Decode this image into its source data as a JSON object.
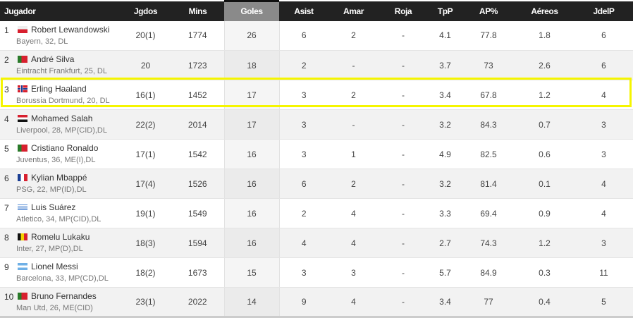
{
  "columns": [
    "Jugador",
    "Jgdos",
    "Mins",
    "Goles",
    "Asist",
    "Amar",
    "Roja",
    "TpP",
    "AP%",
    "Aéreos",
    "JdelP"
  ],
  "highlight_color": "#f5f500",
  "players": [
    {
      "rank": "1",
      "name": "Robert Lewandowski",
      "flag": "poland-flag",
      "club": "Bayern,  32, DL",
      "stats": [
        "20(1)",
        "1774",
        "26",
        "6",
        "2",
        "-",
        "4.1",
        "77.8",
        "1.8",
        "6"
      ]
    },
    {
      "rank": "2",
      "name": "André Silva",
      "flag": "portugal-flag",
      "club": "Eintracht Frankfurt,  25, DL",
      "stats": [
        "20",
        "1723",
        "18",
        "2",
        "-",
        "-",
        "3.7",
        "73",
        "2.6",
        "6"
      ]
    },
    {
      "rank": "3",
      "name": "Erling Haaland",
      "flag": "norway-flag",
      "club": "Borussia Dortmund,  20, DL",
      "stats": [
        "16(1)",
        "1452",
        "17",
        "3",
        "2",
        "-",
        "3.4",
        "67.8",
        "1.2",
        "4"
      ],
      "highlighted": true
    },
    {
      "rank": "4",
      "name": "Mohamed Salah",
      "flag": "egypt-flag",
      "club": "Liverpool,  28, MP(CID),DL",
      "stats": [
        "22(2)",
        "2014",
        "17",
        "3",
        "-",
        "-",
        "3.2",
        "84.3",
        "0.7",
        "3"
      ]
    },
    {
      "rank": "5",
      "name": "Cristiano Ronaldo",
      "flag": "portugal-flag",
      "club": "Juventus,  36, ME(I),DL",
      "stats": [
        "17(1)",
        "1542",
        "16",
        "3",
        "1",
        "-",
        "4.9",
        "82.5",
        "0.6",
        "3"
      ]
    },
    {
      "rank": "6",
      "name": "Kylian Mbappé",
      "flag": "france-flag",
      "club": "PSG,  22, MP(ID),DL",
      "stats": [
        "17(4)",
        "1526",
        "16",
        "6",
        "2",
        "-",
        "3.2",
        "81.4",
        "0.1",
        "4"
      ]
    },
    {
      "rank": "7",
      "name": "Luis Suárez",
      "flag": "uruguay-flag",
      "club": "Atletico,  34, MP(CID),DL",
      "stats": [
        "19(1)",
        "1549",
        "16",
        "2",
        "4",
        "-",
        "3.3",
        "69.4",
        "0.9",
        "4"
      ]
    },
    {
      "rank": "8",
      "name": "Romelu Lukaku",
      "flag": "belgium-flag",
      "club": "Inter,  27, MP(D),DL",
      "stats": [
        "18(3)",
        "1594",
        "16",
        "4",
        "4",
        "-",
        "2.7",
        "74.3",
        "1.2",
        "3"
      ]
    },
    {
      "rank": "9",
      "name": "Lionel Messi",
      "flag": "argentina-flag",
      "club": "Barcelona,  33, MP(CD),DL",
      "stats": [
        "18(2)",
        "1673",
        "15",
        "3",
        "3",
        "-",
        "5.7",
        "84.9",
        "0.3",
        "11"
      ]
    },
    {
      "rank": "10",
      "name": "Bruno Fernandes",
      "flag": "portugal-flag",
      "club": "Man Utd,  26, ME(CID)",
      "stats": [
        "23(1)",
        "2022",
        "14",
        "9",
        "4",
        "-",
        "3.4",
        "77",
        "0.4",
        "5"
      ]
    }
  ]
}
